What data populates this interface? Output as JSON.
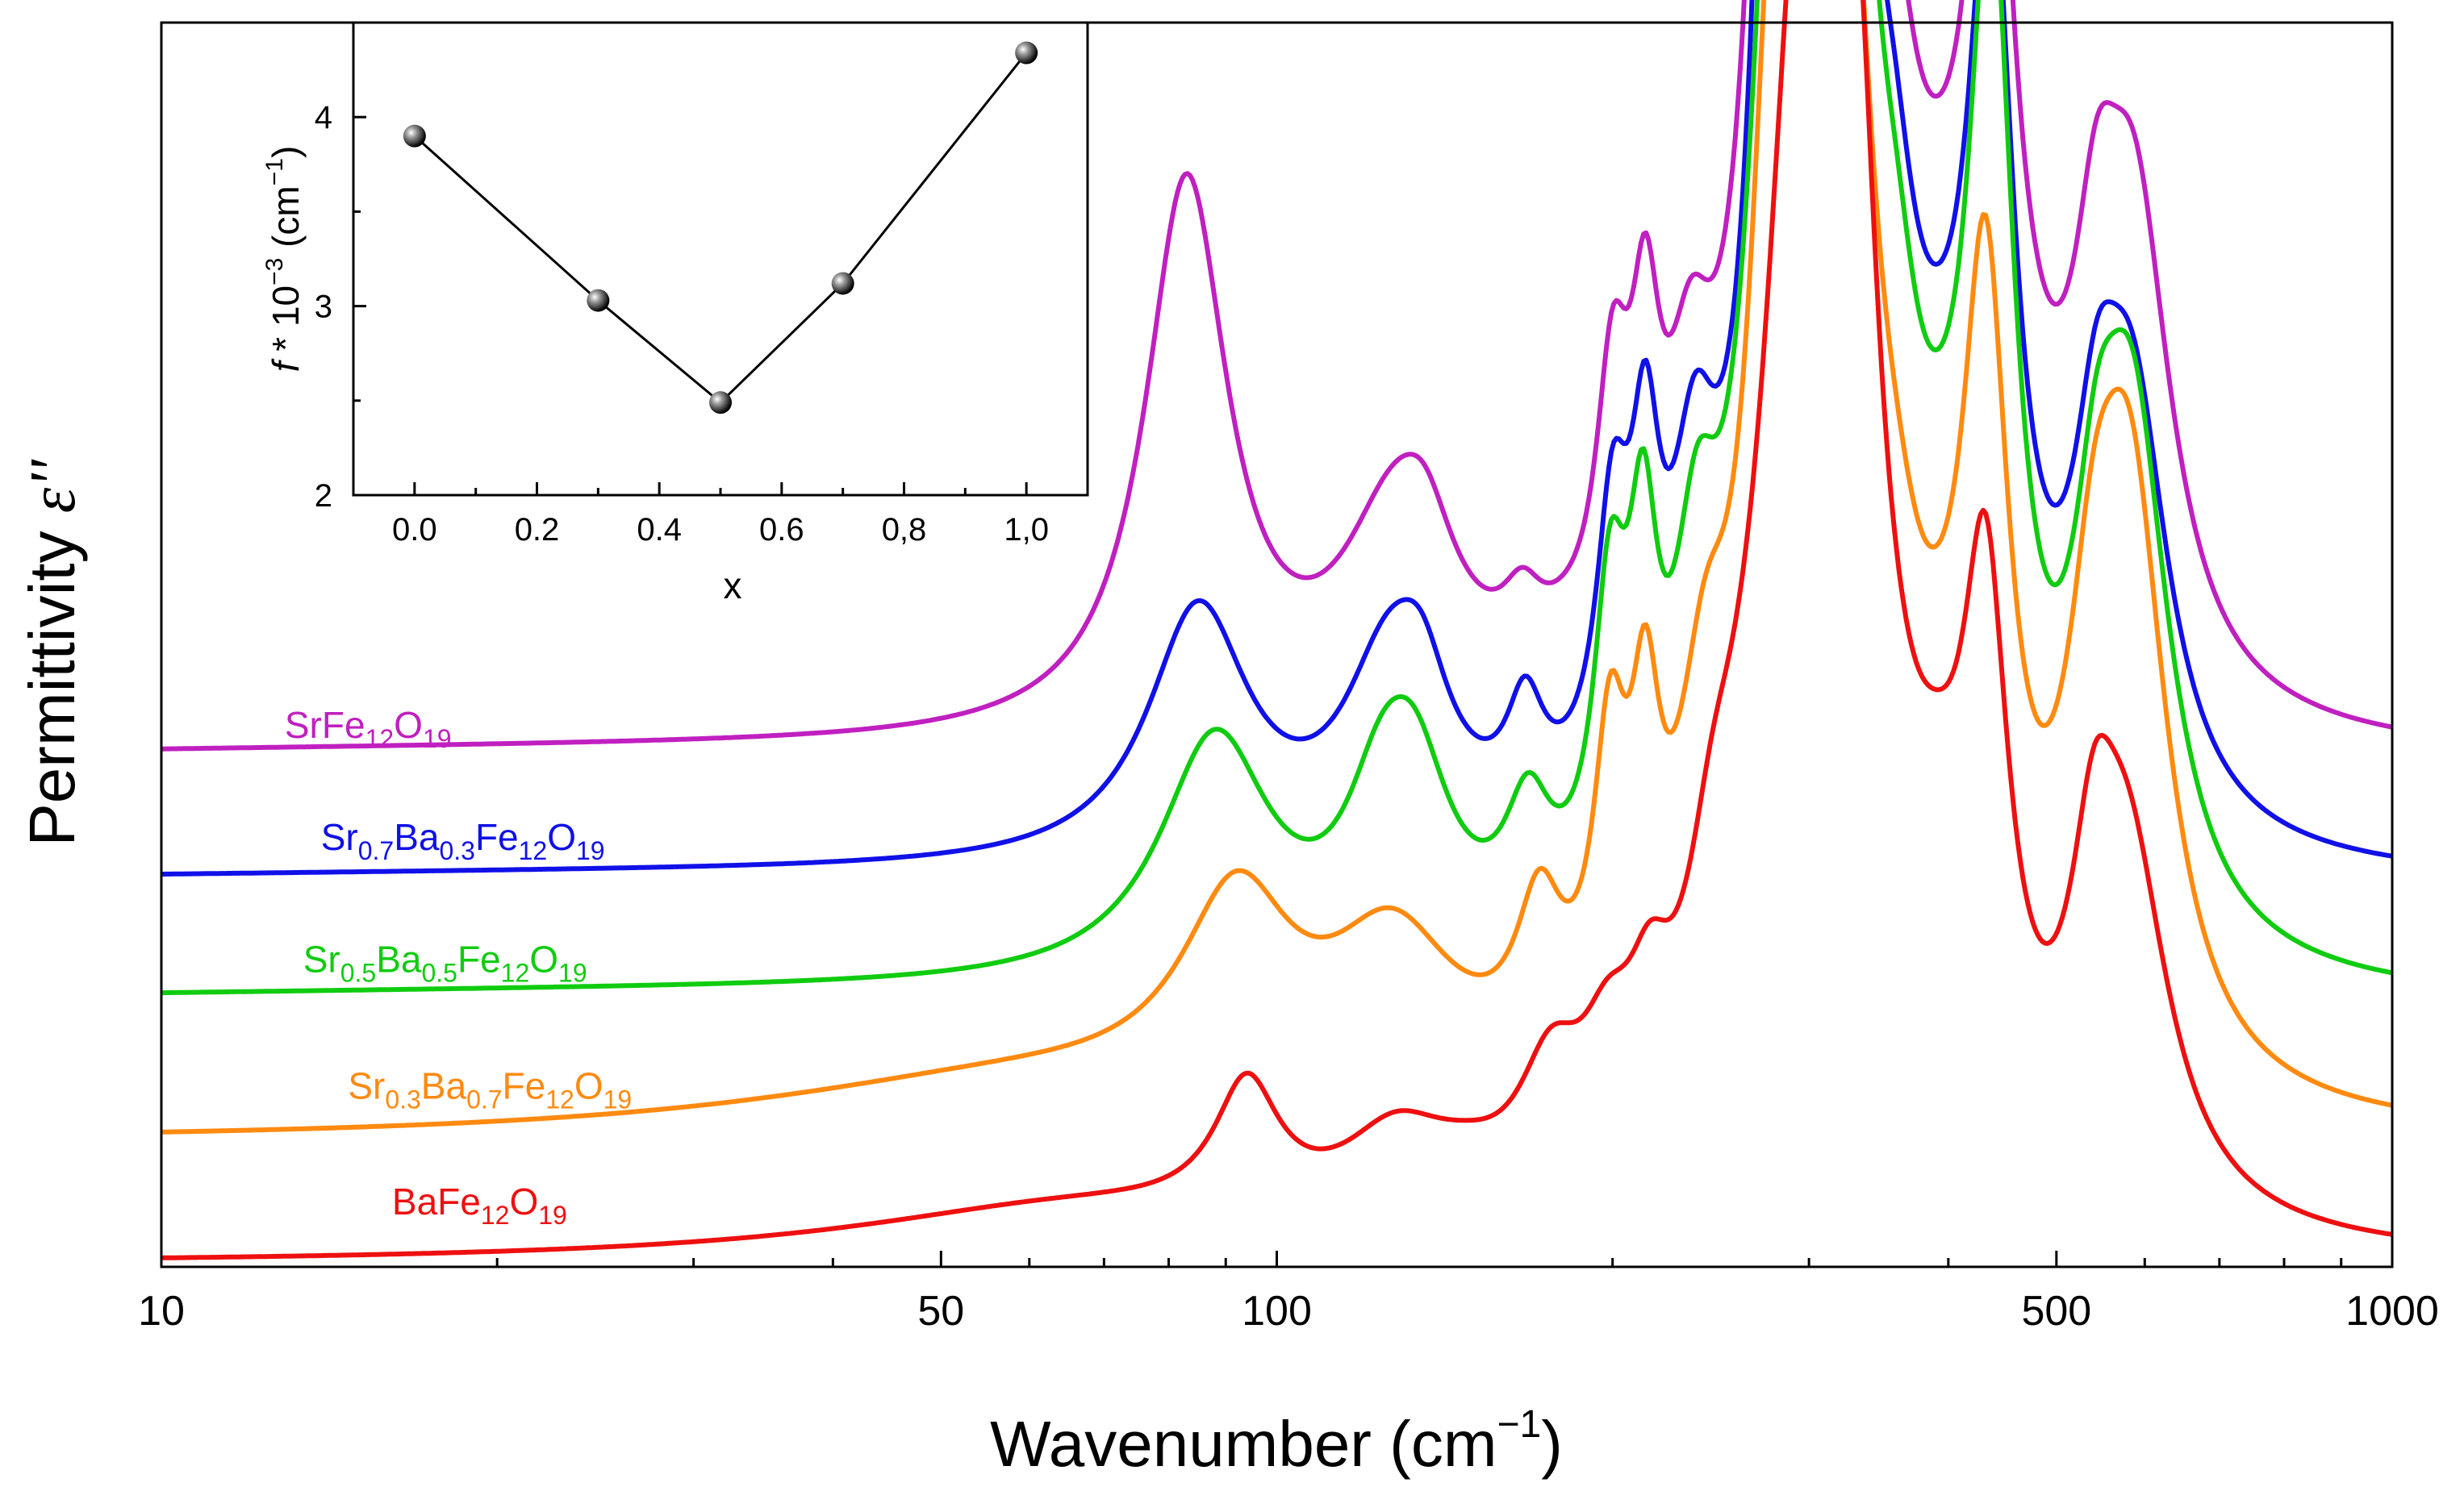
{
  "chart_data": [
    {
      "type": "line",
      "title": "",
      "xlabel": "Wavenumber (cm",
      "xlabel_sup": "−1",
      "xlabel_end": ")",
      "ylabel": "Permittivity ",
      "ylabel_symbol": "ε''",
      "xscale": "log",
      "xlim": [
        10,
        1000
      ],
      "ylim": [
        0,
        1
      ],
      "y_ticks_shown": false,
      "x_ticks": [
        {
          "value": 10,
          "label": "10"
        },
        {
          "value": 50,
          "label": "50"
        },
        {
          "value": 100,
          "label": "100"
        },
        {
          "value": 500,
          "label": "500"
        },
        {
          "value": 1000,
          "label": "1000"
        }
      ],
      "x_minor_ticks": [
        20,
        30,
        40,
        60,
        70,
        80,
        90,
        200,
        300,
        400,
        600,
        700,
        800,
        900
      ],
      "series": [
        {
          "id": "srfe",
          "name_parts": [
            {
              "t": "SrFe"
            },
            {
              "t": "12",
              "sub": true
            },
            {
              "t": "O"
            },
            {
              "t": "19",
              "sub": true
            }
          ],
          "label_x": 12.9,
          "label_y": 0.425,
          "color": "#c020c0",
          "offset": 0.395,
          "base": 0.005,
          "peaks": [
            [
              28,
              0.015,
              1.2
            ],
            [
              83,
              0.44,
              0.045
            ],
            [
              128,
              0.16,
              0.06
            ],
            [
              136,
              0.05,
              0.03
            ],
            [
              166,
              0.045,
              0.022
            ],
            [
              181,
              0.012,
              0.03
            ],
            [
              200,
              0.2,
              0.018
            ],
            [
              214,
              0.21,
              0.016
            ],
            [
              235,
              0.16,
              0.025
            ],
            [
              283,
              0.9,
              0.024
            ],
            [
              298,
              0.85,
              0.025
            ],
            [
              320,
              0.38,
              0.03
            ],
            [
              345,
              0.2,
              0.04
            ],
            [
              358,
              0.12,
              0.025
            ],
            [
              395,
              0.15,
              0.05
            ],
            [
              437,
              0.58,
              0.025
            ],
            [
              470,
              0.06,
              0.06
            ],
            [
              543,
              0.19,
              0.025
            ],
            [
              588,
              0.36,
              0.04
            ]
          ]
        },
        {
          "id": "sr07",
          "name_parts": [
            {
              "t": "Sr"
            },
            {
              "t": "0.7",
              "sub": true
            },
            {
              "t": "Ba"
            },
            {
              "t": "0.3",
              "sub": true
            },
            {
              "t": "Fe"
            },
            {
              "t": "12",
              "sub": true
            },
            {
              "t": "O"
            },
            {
              "t": "19",
              "sub": true
            }
          ],
          "label_x": 13.9,
          "label_y": 0.335,
          "color": "#1010e8",
          "offset": 0.295,
          "base": 0.005,
          "peaks": [
            [
              30,
              0.015,
              1.3
            ],
            [
              85,
              0.2,
              0.055
            ],
            [
              126,
              0.14,
              0.05
            ],
            [
              135,
              0.07,
              0.03
            ],
            [
              167,
              0.08,
              0.02
            ],
            [
              200,
              0.2,
              0.018
            ],
            [
              214,
              0.22,
              0.016
            ],
            [
              237,
              0.2,
              0.025
            ],
            [
              282,
              0.86,
              0.022
            ],
            [
              298,
              0.85,
              0.024
            ],
            [
              323,
              0.55,
              0.025
            ],
            [
              345,
              0.18,
              0.04
            ],
            [
              358,
              0.12,
              0.025
            ],
            [
              395,
              0.14,
              0.05
            ],
            [
              437,
              0.62,
              0.025
            ],
            [
              543,
              0.17,
              0.025
            ],
            [
              585,
              0.32,
              0.04
            ]
          ]
        },
        {
          "id": "sr05",
          "name_parts": [
            {
              "t": "Sr"
            },
            {
              "t": "0.5",
              "sub": true
            },
            {
              "t": "Ba"
            },
            {
              "t": "0.5",
              "sub": true
            },
            {
              "t": "Fe"
            },
            {
              "t": "12",
              "sub": true
            },
            {
              "t": "O"
            },
            {
              "t": "19",
              "sub": true
            }
          ],
          "label_x": 13.4,
          "label_y": 0.237,
          "color": "#10cc10",
          "offset": 0.195,
          "base": 0.005,
          "peaks": [
            [
              32,
              0.02,
              1.4
            ],
            [
              88,
              0.19,
              0.06
            ],
            [
              124,
              0.1,
              0.04
            ],
            [
              133,
              0.12,
              0.04
            ],
            [
              168,
              0.09,
              0.025
            ],
            [
              199,
              0.22,
              0.018
            ],
            [
              213,
              0.23,
              0.016
            ],
            [
              238,
              0.2,
              0.025
            ],
            [
              280,
              0.52,
              0.035
            ],
            [
              295,
              0.92,
              0.022
            ],
            [
              326,
              0.62,
              0.025
            ],
            [
              345,
              0.16,
              0.04
            ],
            [
              360,
              0.12,
              0.025
            ],
            [
              395,
              0.14,
              0.05
            ],
            [
              437,
              0.68,
              0.025
            ],
            [
              543,
              0.17,
              0.025
            ],
            [
              585,
              0.4,
              0.04
            ]
          ]
        },
        {
          "id": "sr03",
          "name_parts": [
            {
              "t": "Sr"
            },
            {
              "t": "0.3",
              "sub": true
            },
            {
              "t": "Ba"
            },
            {
              "t": "0.7",
              "sub": true
            },
            {
              "t": "Fe"
            },
            {
              "t": "12",
              "sub": true
            },
            {
              "t": "O"
            },
            {
              "t": "19",
              "sub": true
            }
          ],
          "label_x": 14.7,
          "label_y": 0.135,
          "color": "#ff8a10",
          "offset": 0.095,
          "base": 0.005,
          "peaks": [
            [
              60,
              0.045,
              0.3
            ],
            [
              92,
              0.15,
              0.06
            ],
            [
              127,
              0.12,
              0.07
            ],
            [
              172,
              0.11,
              0.025
            ],
            [
              199,
              0.21,
              0.018
            ],
            [
              214,
              0.2,
              0.016
            ],
            [
              242,
              0.2,
              0.03
            ],
            [
              280,
              0.65,
              0.03
            ],
            [
              300,
              0.6,
              0.025
            ],
            [
              327,
              0.55,
              0.025
            ],
            [
              345,
              0.12,
              0.04
            ],
            [
              360,
              0.09,
              0.03
            ],
            [
              395,
              0.12,
              0.05
            ],
            [
              432,
              0.52,
              0.025
            ],
            [
              540,
              0.22,
              0.03
            ],
            [
              583,
              0.43,
              0.04
            ]
          ]
        },
        {
          "id": "bafe",
          "name_parts": [
            {
              "t": "BaFe"
            },
            {
              "t": "12",
              "sub": true
            },
            {
              "t": "O"
            },
            {
              "t": "19",
              "sub": true
            }
          ],
          "label_x": 16.1,
          "label_y": 0.042,
          "color": "#ee1010",
          "offset": 0.0,
          "base": 0.002,
          "peaks": [
            [
              66,
              0.04,
              0.25
            ],
            [
              94,
              0.1,
              0.035
            ],
            [
              128,
              0.065,
              0.06
            ],
            [
              148,
              0.02,
              0.05
            ],
            [
              176,
              0.09,
              0.035
            ],
            [
              198,
              0.08,
              0.03
            ],
            [
              216,
              0.09,
              0.025
            ],
            [
              246,
              0.14,
              0.03
            ],
            [
              262,
              0.05,
              0.03
            ],
            [
              287,
              0.46,
              0.04
            ],
            [
              302,
              0.6,
              0.03
            ],
            [
              330,
              0.6,
              0.025
            ],
            [
              355,
              0.1,
              0.04
            ],
            [
              392,
              0.14,
              0.04
            ],
            [
              432,
              0.4,
              0.025
            ],
            [
              540,
              0.16,
              0.025
            ],
            [
              580,
              0.27,
              0.045
            ]
          ]
        }
      ]
    },
    {
      "type": "scatter",
      "subtype": "line+markers",
      "title": "",
      "xlabel": "x",
      "ylabel_italic": "f",
      "ylabel": " * 10",
      "ylabel_sup1": "−3",
      "ylabel_mid": " (cm",
      "ylabel_sup2": "−1",
      "ylabel_end": ")",
      "xlim": [
        -0.1,
        1.1
      ],
      "ylim": [
        2,
        4.5
      ],
      "x_ticks": [
        {
          "value": 0.0,
          "label": "0.0"
        },
        {
          "value": 0.2,
          "label": "0.2"
        },
        {
          "value": 0.4,
          "label": "0.4"
        },
        {
          "value": 0.6,
          "label": "0.6"
        },
        {
          "value": 0.8,
          "label": "0,8"
        },
        {
          "value": 1.0,
          "label": "1,0"
        }
      ],
      "y_ticks": [
        {
          "value": 2,
          "label": "2"
        },
        {
          "value": 3,
          "label": "3"
        },
        {
          "value": 4,
          "label": "4"
        }
      ],
      "x": [
        0.0,
        0.3,
        0.5,
        0.7,
        1.0
      ],
      "y": [
        3.9,
        3.03,
        2.49,
        3.12,
        4.34
      ],
      "color": "#000000"
    }
  ]
}
